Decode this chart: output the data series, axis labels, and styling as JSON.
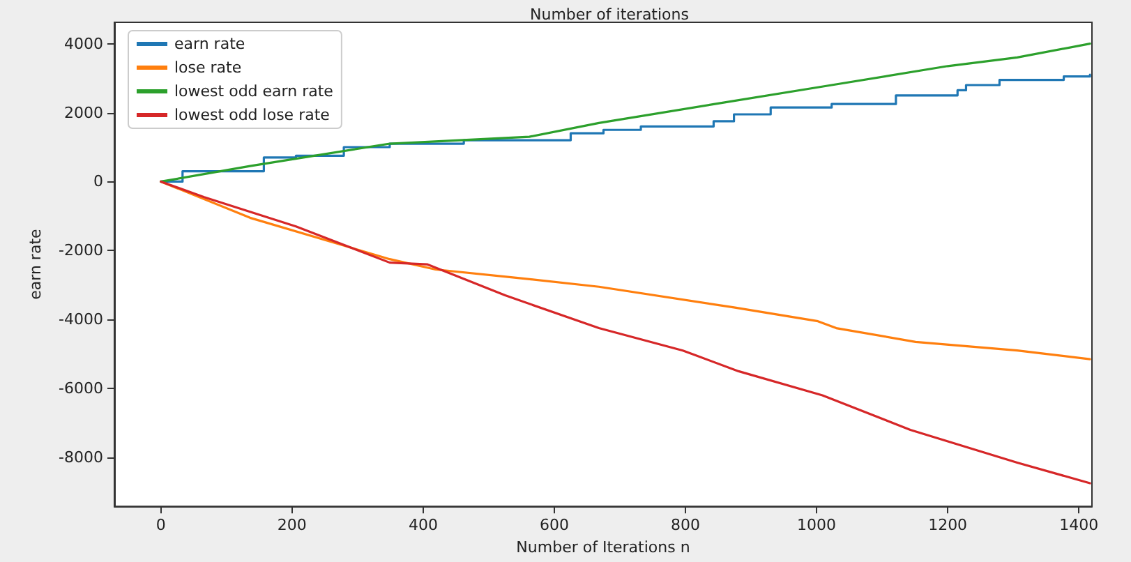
{
  "chart_data": {
    "type": "line",
    "title": "Number of iterations",
    "xlabel": "Number of Iterations n",
    "ylabel": "earn rate",
    "xlim": [
      -71,
      1420
    ],
    "ylim": [
      -9420,
      4620
    ],
    "xticks": [
      0,
      200,
      400,
      600,
      800,
      1000,
      1200,
      1400
    ],
    "yticks": [
      -8000,
      -6000,
      -4000,
      -2000,
      0,
      2000,
      4000
    ],
    "grid": false,
    "legend": "top left",
    "line_style": "solid",
    "marker": "none",
    "series": [
      {
        "name": "earn rate",
        "type": "step",
        "color": "#1f77b4",
        "x": [
          0,
          33,
          157,
          206,
          279,
          349,
          462,
          625,
          675,
          732,
          843,
          874,
          930,
          1023,
          1121,
          1215,
          1228,
          1279,
          1377,
          1417
        ],
        "values": [
          0,
          300,
          700,
          750,
          1000,
          1100,
          1200,
          1400,
          1500,
          1600,
          1750,
          1950,
          2150,
          2250,
          2500,
          2650,
          2800,
          2950,
          3050,
          3100
        ]
      },
      {
        "name": "lose rate",
        "color": "#ff7f0e",
        "x": [
          0,
          136,
          349,
          419,
          547,
          668,
          874,
          1002,
          1030,
          1151,
          1306,
          1417
        ],
        "values": [
          0,
          -1050,
          -2250,
          -2550,
          -2800,
          -3050,
          -3650,
          -4050,
          -4250,
          -4650,
          -4900,
          -5150
        ]
      },
      {
        "name": "lowest odd earn rate",
        "color": "#2ca02c",
        "x": [
          0,
          136,
          349,
          562,
          668,
          845,
          1023,
          1200,
          1306,
          1417
        ],
        "values": [
          0,
          450,
          1100,
          1300,
          1700,
          2250,
          2800,
          3350,
          3600,
          4000
        ]
      },
      {
        "name": "lowest odd lose rate",
        "color": "#d62728",
        "x": [
          0,
          66,
          206,
          349,
          406,
          525,
          668,
          796,
          881,
          1009,
          1143,
          1306,
          1417
        ],
        "values": [
          0,
          -450,
          -1300,
          -2350,
          -2400,
          -3300,
          -4250,
          -4900,
          -5500,
          -6200,
          -7200,
          -8150,
          -8750
        ]
      }
    ]
  }
}
